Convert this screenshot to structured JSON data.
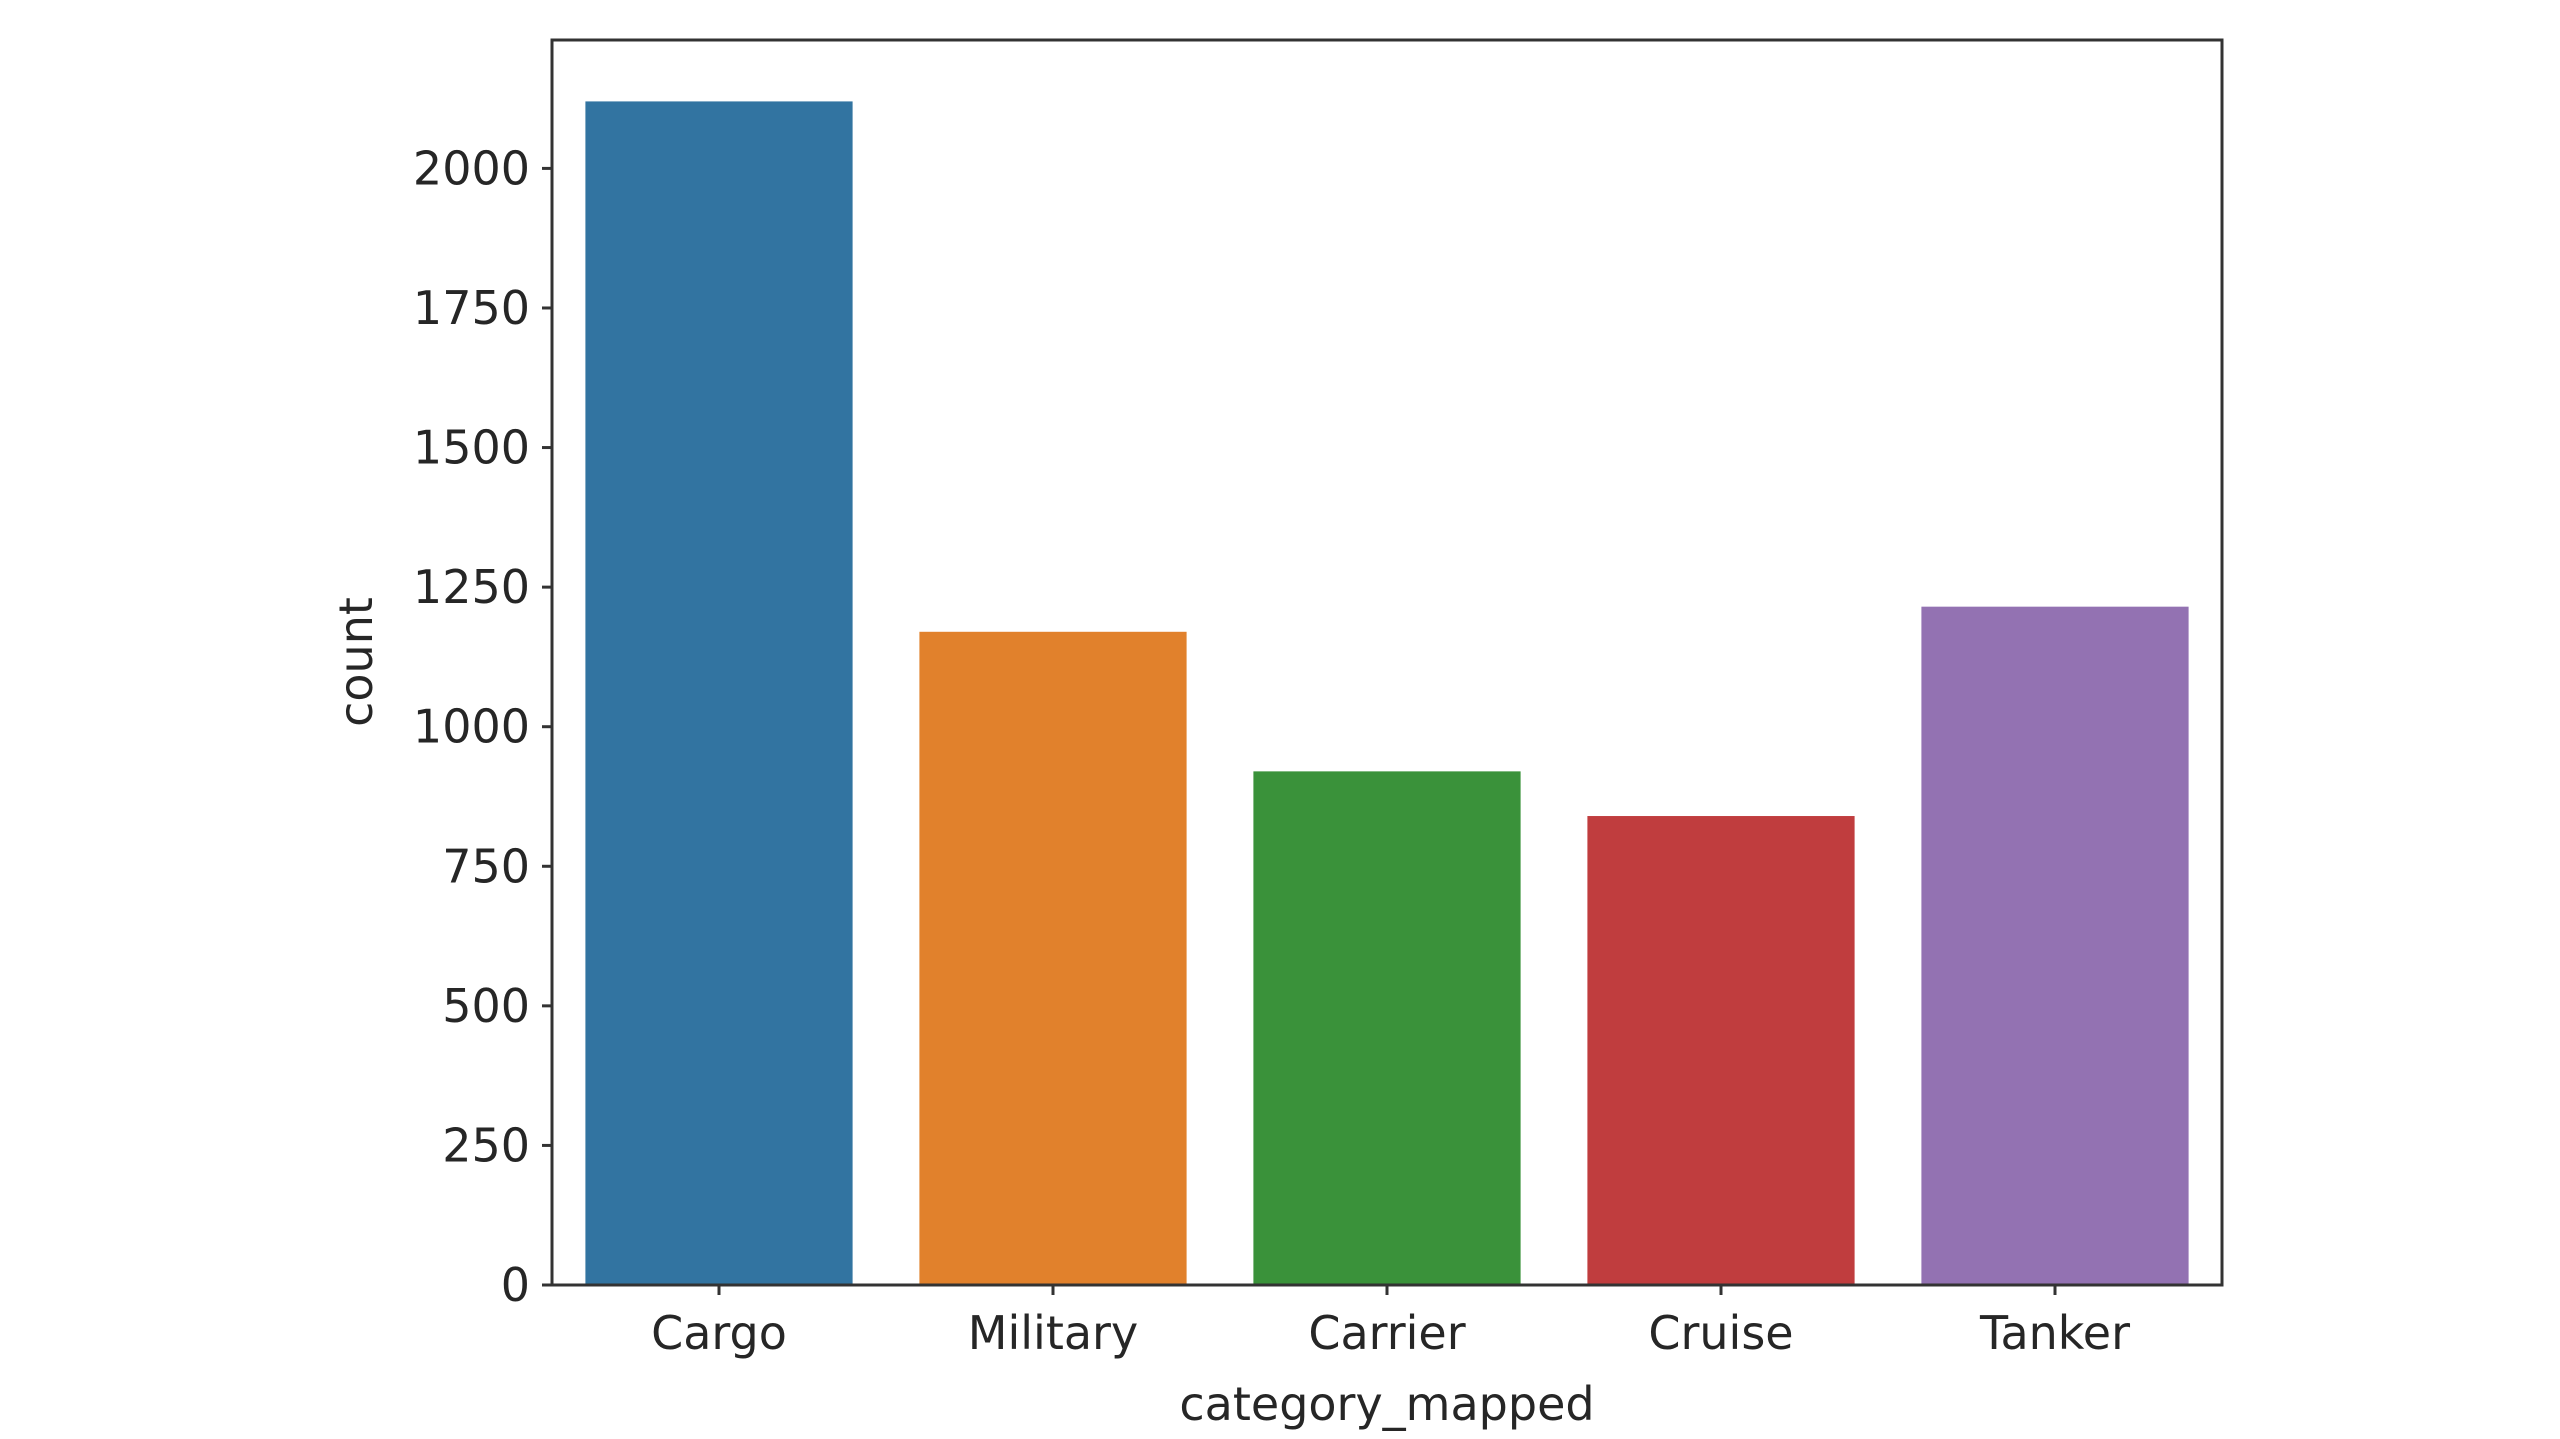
{
  "chart_data": {
    "type": "bar",
    "categories": [
      "Cargo",
      "Military",
      "Carrier",
      "Cruise",
      "Tanker"
    ],
    "values": [
      2120,
      1170,
      920,
      840,
      1215
    ],
    "colors": [
      "#3274a1",
      "#e1812c",
      "#3a923a",
      "#c03d3e",
      "#9372b2"
    ],
    "xlabel": "category_mapped",
    "ylabel": "count",
    "ylim": [
      0,
      2230
    ],
    "yticks": [
      0,
      250,
      500,
      750,
      1000,
      1250,
      1500,
      1750,
      2000
    ],
    "ytick_labels": [
      "0",
      "250",
      "500",
      "750",
      "1000",
      "1250",
      "1500",
      "1750",
      "2000"
    ],
    "grid": false,
    "legend": "none"
  }
}
